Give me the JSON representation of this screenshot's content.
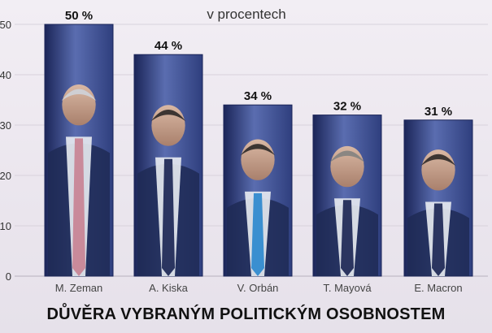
{
  "chart_data": {
    "type": "bar",
    "title": "DŮVĚRA VYBRANÝM POLITICKÝM OSOBNOSTEM",
    "ylabel": "v procentech",
    "xlabel": "",
    "categories": [
      "M. Zeman",
      "A. Kiska",
      "V. Orbán",
      "T. Mayová",
      "E. Macron"
    ],
    "values": [
      50,
      44,
      34,
      32,
      31
    ],
    "value_labels": [
      "50 %",
      "44 %",
      "34 %",
      "32 %",
      "31 %"
    ],
    "yticks": [
      "0",
      "10",
      "20",
      "30",
      "40",
      "50"
    ],
    "ylim": [
      0,
      50
    ],
    "grid": true,
    "legend": "none",
    "colors": {
      "bar_fill": "#2f3f7e",
      "bar_highlight": "#5a6db0",
      "bar_border": "#1b2558",
      "grid": "#d8d2dc"
    }
  }
}
